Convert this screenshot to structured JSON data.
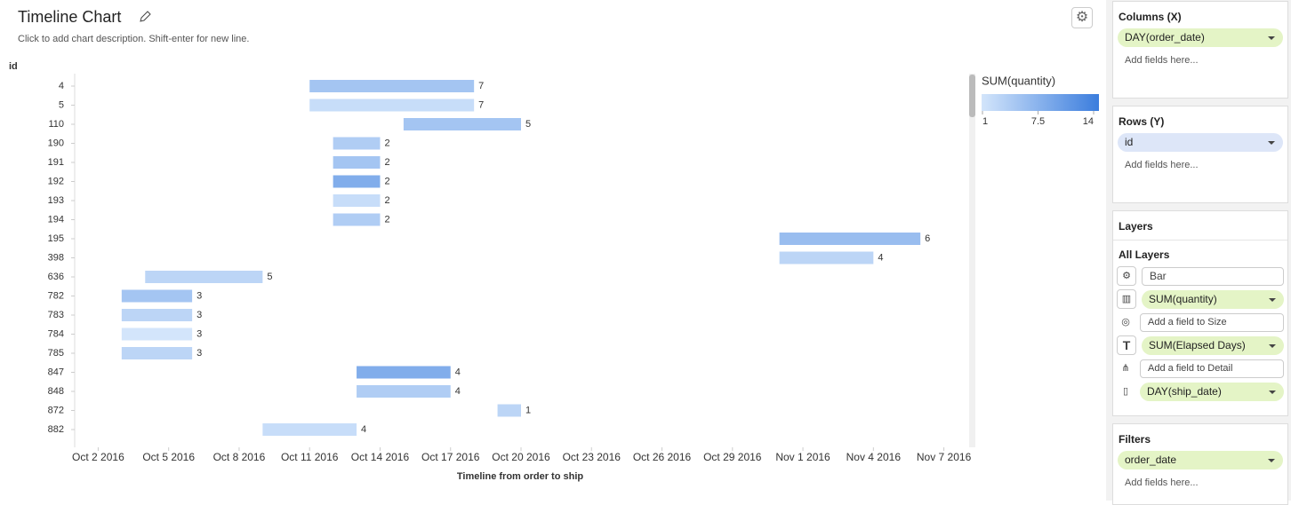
{
  "header": {
    "title": "Timeline Chart",
    "description": "Click to add chart description. Shift-enter for new line."
  },
  "chart_data": {
    "type": "timeline",
    "y_axis_label": "id",
    "x_axis_label": "Timeline from order to ship",
    "categories": [
      "4",
      "5",
      "110",
      "190",
      "191",
      "192",
      "193",
      "194",
      "195",
      "398",
      "636",
      "782",
      "783",
      "784",
      "785",
      "847",
      "848",
      "872",
      "882"
    ],
    "start": [
      "2016-10-11",
      "2016-10-11",
      "2016-10-15",
      "2016-10-12",
      "2016-10-12",
      "2016-10-12",
      "2016-10-12",
      "2016-10-12",
      "2016-10-31",
      "2016-10-31",
      "2016-10-04",
      "2016-10-03",
      "2016-10-03",
      "2016-10-03",
      "2016-10-03",
      "2016-10-13",
      "2016-10-13",
      "2016-10-19",
      "2016-10-09"
    ],
    "end": [
      "2016-10-18",
      "2016-10-18",
      "2016-10-20",
      "2016-10-14",
      "2016-10-14",
      "2016-10-14",
      "2016-10-14",
      "2016-10-14",
      "2016-11-06",
      "2016-11-04",
      "2016-10-09",
      "2016-10-06",
      "2016-10-06",
      "2016-10-06",
      "2016-10-06",
      "2016-10-17",
      "2016-10-17",
      "2016-10-20",
      "2016-10-13"
    ],
    "values": [
      7,
      7,
      5,
      2,
      2,
      2,
      2,
      2,
      6,
      4,
      5,
      3,
      3,
      3,
      3,
      4,
      4,
      1,
      4
    ],
    "quantity": [
      5,
      2,
      5,
      4,
      5,
      8,
      2,
      4,
      6,
      3,
      3,
      5,
      3,
      1,
      3,
      8,
      4,
      3,
      2
    ],
    "xlim": [
      "2016-10-01",
      "2016-11-08"
    ],
    "xticks": [
      {
        "value": "2016-10-02",
        "label": "Oct 2 2016"
      },
      {
        "value": "2016-10-05",
        "label": "Oct 5 2016"
      },
      {
        "value": "2016-10-08",
        "label": "Oct 8 2016"
      },
      {
        "value": "2016-10-11",
        "label": "Oct 11 2016"
      },
      {
        "value": "2016-10-14",
        "label": "Oct 14 2016"
      },
      {
        "value": "2016-10-17",
        "label": "Oct 17 2016"
      },
      {
        "value": "2016-10-20",
        "label": "Oct 20 2016"
      },
      {
        "value": "2016-10-23",
        "label": "Oct 23 2016"
      },
      {
        "value": "2016-10-26",
        "label": "Oct 26 2016"
      },
      {
        "value": "2016-10-29",
        "label": "Oct 29 2016"
      },
      {
        "value": "2016-11-01",
        "label": "Nov 1 2016"
      },
      {
        "value": "2016-11-04",
        "label": "Nov 4 2016"
      },
      {
        "value": "2016-11-07",
        "label": "Nov 7 2016"
      }
    ],
    "color_legend": {
      "title": "SUM(quantity)",
      "range": [
        1,
        14
      ],
      "ticks": [
        1,
        7.5,
        14
      ],
      "colors": [
        "#d3e5fb",
        "#3b7ddd"
      ]
    }
  },
  "panel": {
    "columns": {
      "title": "Columns (X)",
      "field": "DAY(order_date)",
      "placeholder": "Add fields here..."
    },
    "rows": {
      "title": "Rows (Y)",
      "field": "id",
      "placeholder": "Add fields here..."
    },
    "layers": {
      "title": "Layers",
      "group": "All Layers",
      "mark_type": "Bar",
      "color": "SUM(quantity)",
      "size": "Add a field to Size",
      "label": "SUM(Elapsed Days)",
      "detail": "Add a field to Detail",
      "path": "DAY(ship_date)"
    },
    "filters": {
      "title": "Filters",
      "field": "order_date",
      "placeholder": "Add fields here..."
    }
  }
}
